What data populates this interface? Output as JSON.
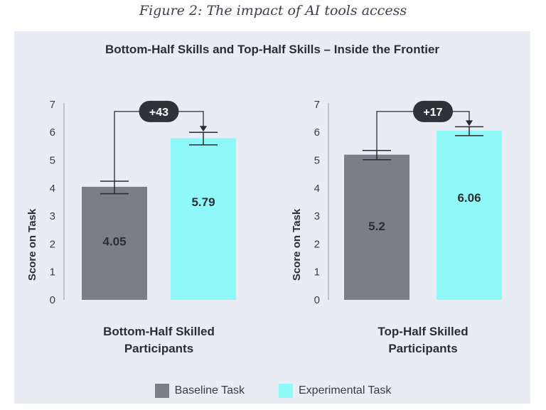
{
  "caption": "Figure 2: The impact of AI tools access",
  "colors": {
    "baseline": "#7a7e88",
    "experimental": "#8ff8f8",
    "badge": "#2f3338",
    "panel": "#eaecf3"
  },
  "chart_data": [
    {
      "type": "bar",
      "title": "Bottom-Half Skills and Top-Half Skills – Inside the Frontier",
      "category_lines": [
        "Bottom-Half Skilled",
        "Participants"
      ],
      "ylabel": "Score on Task",
      "ylim": [
        0,
        7
      ],
      "yticks": [
        "0",
        "1",
        "2",
        "3",
        "4",
        "5",
        "6",
        "7"
      ],
      "series": [
        {
          "name": "Baseline Task",
          "value": 4.05,
          "error": [
            3.8,
            4.25
          ]
        },
        {
          "name": "Experimental Task",
          "value": 5.79,
          "error": [
            5.55,
            6.0
          ]
        }
      ],
      "value_labels": [
        "4.05",
        "5.79"
      ],
      "annotation": "+43"
    },
    {
      "type": "bar",
      "title": "Bottom-Half Skills and Top-Half Skills – Inside the Frontier",
      "category_lines": [
        "Top-Half Skilled",
        "Participants"
      ],
      "ylabel": "Score on Task",
      "ylim": [
        0,
        7
      ],
      "yticks": [
        "0",
        "1",
        "2",
        "3",
        "4",
        "5",
        "6",
        "7"
      ],
      "series": [
        {
          "name": "Baseline Task",
          "value": 5.2,
          "error": [
            5.02,
            5.35
          ]
        },
        {
          "name": "Experimental Task",
          "value": 6.06,
          "error": [
            5.88,
            6.2
          ]
        }
      ],
      "value_labels": [
        "5.2",
        "6.06"
      ],
      "annotation": "+17"
    }
  ],
  "panel_title": "Bottom-Half Skills and Top-Half Skills – Inside the Frontier",
  "legend": [
    {
      "label": "Baseline Task"
    },
    {
      "label": "Experimental Task"
    }
  ]
}
